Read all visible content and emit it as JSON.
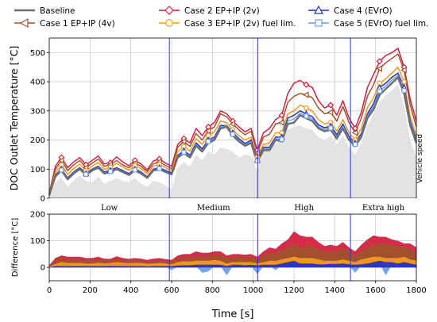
{
  "legend": [
    {
      "name": "Baseline",
      "color": "#6e6e6e",
      "marker": "none"
    },
    {
      "name": "Case 1  EP+IP (4v)",
      "color": "#a0522d",
      "marker": "tri-left"
    },
    {
      "name": "Case 2 EP+IP (2v)",
      "color": "#d62040",
      "marker": "diamond"
    },
    {
      "name": "Case 3 EP+IP (2v) fuel lim.",
      "color": "#f39a1c",
      "marker": "circle"
    },
    {
      "name": "Case 4 (EVrO)",
      "color": "#2431c8",
      "marker": "tri-up"
    },
    {
      "name": "Case 5 (EVrO) fuel lim.",
      "color": "#6f9ee6",
      "marker": "square"
    }
  ],
  "phases": [
    "Low",
    "Medium",
    "High",
    "Extra high"
  ],
  "vehicle_speed_label": "Vehicle speed",
  "chart_data": [
    {
      "type": "line",
      "ylabel": "DOC Outlet Temperature [°C]",
      "xlim": [
        0,
        1800
      ],
      "ylim": [
        0,
        550
      ],
      "yticks": [
        0,
        100,
        200,
        300,
        400,
        500
      ],
      "xticks": [
        0,
        200,
        400,
        600,
        800,
        1000,
        1200,
        1400,
        1600,
        1800
      ],
      "phase_boundaries": [
        589,
        1022,
        1477
      ],
      "grid": true,
      "x": [
        0,
        30,
        60,
        90,
        120,
        150,
        180,
        210,
        240,
        270,
        300,
        330,
        360,
        390,
        420,
        450,
        480,
        510,
        540,
        570,
        600,
        630,
        660,
        690,
        720,
        750,
        780,
        810,
        840,
        870,
        900,
        930,
        960,
        990,
        1020,
        1050,
        1080,
        1110,
        1140,
        1170,
        1200,
        1230,
        1260,
        1290,
        1320,
        1350,
        1380,
        1410,
        1440,
        1470,
        1500,
        1530,
        1560,
        1590,
        1620,
        1650,
        1680,
        1710,
        1740,
        1770,
        1800
      ],
      "series": [
        {
          "name": "Baseline",
          "values": [
            10,
            75,
            95,
            65,
            85,
            100,
            80,
            95,
            105,
            85,
            90,
            100,
            90,
            80,
            95,
            85,
            70,
            95,
            100,
            90,
            82,
            140,
            155,
            140,
            180,
            160,
            190,
            200,
            240,
            245,
            215,
            195,
            180,
            190,
            125,
            165,
            165,
            200,
            195,
            255,
            260,
            285,
            275,
            265,
            240,
            230,
            235,
            205,
            240,
            200,
            180,
            210,
            275,
            305,
            355,
            375,
            395,
            415,
            360,
            250,
            190
          ]
        },
        {
          "name": "Case 1  EP+IP (4v)",
          "values": [
            15,
            100,
            130,
            95,
            115,
            130,
            105,
            120,
            135,
            110,
            115,
            130,
            115,
            105,
            120,
            110,
            92,
            118,
            125,
            113,
            102,
            175,
            195,
            178,
            222,
            200,
            232,
            245,
            290,
            280,
            255,
            235,
            218,
            230,
            155,
            210,
            220,
            255,
            260,
            330,
            350,
            360,
            355,
            345,
            310,
            290,
            295,
            265,
            315,
            260,
            225,
            275,
            350,
            390,
            445,
            465,
            480,
            495,
            440,
            320,
            245
          ]
        },
        {
          "name": "Case 2 EP+IP (2v)",
          "values": [
            18,
            110,
            140,
            105,
            125,
            140,
            115,
            130,
            145,
            118,
            122,
            142,
            125,
            112,
            130,
            118,
            98,
            128,
            135,
            121,
            110,
            185,
            205,
            190,
            240,
            215,
            245,
            260,
            300,
            290,
            265,
            245,
            228,
            240,
            165,
            225,
            240,
            270,
            285,
            360,
            395,
            405,
            390,
            380,
            335,
            310,
            320,
            285,
            335,
            275,
            240,
            295,
            380,
            425,
            470,
            490,
            500,
            515,
            450,
            340,
            265
          ]
        },
        {
          "name": "Case 3 EP+IP (2v) fuel lim.",
          "values": [
            13,
            88,
            115,
            82,
            102,
            117,
            95,
            110,
            123,
            100,
            107,
            120,
            108,
            96,
            112,
            102,
            84,
            110,
            117,
            105,
            94,
            160,
            178,
            162,
            205,
            185,
            215,
            228,
            265,
            260,
            235,
            215,
            200,
            210,
            140,
            185,
            190,
            225,
            225,
            290,
            300,
            320,
            310,
            300,
            270,
            255,
            260,
            230,
            270,
            225,
            200,
            240,
            310,
            345,
            395,
            410,
            430,
            450,
            400,
            280,
            215
          ]
        },
        {
          "name": "Case 4 (EVrO)",
          "values": [
            11,
            80,
            100,
            70,
            90,
            105,
            85,
            100,
            110,
            90,
            96,
            105,
            95,
            85,
            100,
            90,
            74,
            100,
            105,
            95,
            87,
            147,
            163,
            148,
            190,
            170,
            200,
            210,
            250,
            250,
            225,
            205,
            188,
            200,
            132,
            175,
            175,
            210,
            210,
            275,
            285,
            300,
            290,
            280,
            252,
            242,
            248,
            218,
            255,
            212,
            190,
            222,
            290,
            325,
            380,
            395,
            415,
            430,
            380,
            265,
            200
          ]
        },
        {
          "name": "Case 5 (EVrO) fuel lim.",
          "values": [
            10,
            77,
            97,
            67,
            87,
            102,
            82,
            97,
            107,
            87,
            92,
            102,
            92,
            82,
            97,
            87,
            72,
            97,
            102,
            92,
            84,
            143,
            158,
            144,
            184,
            164,
            195,
            205,
            245,
            248,
            220,
            200,
            184,
            195,
            128,
            170,
            170,
            205,
            202,
            265,
            272,
            292,
            282,
            272,
            246,
            236,
            241,
            211,
            248,
            206,
            185,
            216,
            282,
            315,
            368,
            385,
            405,
            422,
            370,
            258,
            195
          ]
        }
      ],
      "vehicle_speed_band": [
        0,
        55,
        70,
        40,
        62,
        78,
        60,
        55,
        75,
        50,
        60,
        70,
        60,
        55,
        70,
        50,
        40,
        60,
        55,
        45,
        30,
        105,
        125,
        110,
        150,
        130,
        160,
        150,
        175,
        170,
        160,
        140,
        150,
        145,
        90,
        180,
        195,
        185,
        210,
        235,
        245,
        250,
        240,
        235,
        210,
        200,
        215,
        185,
        215,
        175,
        150,
        190,
        250,
        290,
        330,
        355,
        370,
        390,
        320,
        200,
        140
      ]
    },
    {
      "type": "area",
      "ylabel": "Difference [°C]",
      "xlabel": "Time [s]",
      "xlim": [
        0,
        1800
      ],
      "ylim": [
        -50,
        200
      ],
      "yticks": [
        0,
        100,
        200
      ],
      "xticks": [
        0,
        200,
        400,
        600,
        800,
        1000,
        1200,
        1400,
        1600,
        1800
      ],
      "phase_boundaries": [
        589,
        1022,
        1477
      ],
      "grid": true,
      "x": [
        0,
        30,
        60,
        90,
        120,
        150,
        180,
        210,
        240,
        270,
        300,
        330,
        360,
        390,
        420,
        450,
        480,
        510,
        540,
        570,
        600,
        630,
        660,
        690,
        720,
        750,
        780,
        810,
        840,
        870,
        900,
        930,
        960,
        990,
        1020,
        1050,
        1080,
        1110,
        1140,
        1170,
        1200,
        1230,
        1260,
        1290,
        1320,
        1350,
        1380,
        1410,
        1440,
        1470,
        1500,
        1530,
        1560,
        1590,
        1620,
        1650,
        1680,
        1710,
        1740,
        1770,
        1800
      ],
      "series": [
        {
          "name": "Case 2 EP+IP (2v)",
          "values": [
            8,
            35,
            45,
            40,
            40,
            40,
            35,
            35,
            40,
            33,
            32,
            42,
            35,
            32,
            35,
            33,
            28,
            33,
            35,
            31,
            28,
            45,
            50,
            50,
            60,
            55,
            55,
            60,
            60,
            45,
            50,
            50,
            48,
            50,
            40,
            60,
            75,
            70,
            90,
            105,
            135,
            120,
            115,
            115,
            95,
            80,
            85,
            80,
            95,
            75,
            60,
            85,
            105,
            120,
            115,
            115,
            105,
            100,
            90,
            90,
            75
          ]
        },
        {
          "name": "Case 1  EP+IP (4v)",
          "values": [
            5,
            25,
            35,
            30,
            30,
            30,
            25,
            25,
            30,
            25,
            25,
            30,
            25,
            25,
            25,
            25,
            22,
            23,
            25,
            23,
            20,
            35,
            40,
            38,
            42,
            40,
            42,
            45,
            50,
            35,
            40,
            40,
            38,
            40,
            30,
            45,
            55,
            55,
            65,
            75,
            90,
            75,
            80,
            80,
            70,
            60,
            60,
            60,
            75,
            60,
            45,
            65,
            75,
            85,
            90,
            90,
            85,
            80,
            80,
            70,
            55
          ]
        },
        {
          "name": "Case 3 EP+IP (2v) fuel lim.",
          "values": [
            3,
            13,
            20,
            17,
            17,
            17,
            15,
            15,
            18,
            15,
            17,
            20,
            18,
            16,
            17,
            17,
            14,
            15,
            17,
            15,
            12,
            20,
            23,
            22,
            25,
            25,
            25,
            28,
            25,
            15,
            20,
            20,
            20,
            20,
            15,
            20,
            25,
            25,
            30,
            35,
            40,
            35,
            35,
            35,
            30,
            25,
            25,
            25,
            30,
            25,
            20,
            30,
            35,
            40,
            40,
            35,
            35,
            35,
            40,
            30,
            25
          ]
        },
        {
          "name": "Case 5 (EVrO) fuel lim.",
          "values": [
            0,
            2,
            2,
            2,
            2,
            2,
            2,
            2,
            2,
            2,
            2,
            2,
            2,
            2,
            2,
            2,
            2,
            2,
            2,
            2,
            -10,
            3,
            3,
            4,
            4,
            -20,
            -15,
            5,
            5,
            -30,
            5,
            5,
            4,
            5,
            -25,
            5,
            5,
            -10,
            7,
            10,
            12,
            7,
            7,
            7,
            6,
            6,
            6,
            6,
            8,
            6,
            -20,
            6,
            7,
            10,
            13,
            -30,
            10,
            7,
            10,
            8,
            5
          ]
        },
        {
          "name": "Case 4 (EVrO)",
          "values": [
            1,
            5,
            5,
            5,
            5,
            5,
            5,
            5,
            5,
            5,
            6,
            5,
            5,
            5,
            5,
            5,
            4,
            5,
            5,
            5,
            5,
            7,
            8,
            8,
            10,
            10,
            10,
            10,
            10,
            5,
            10,
            10,
            8,
            10,
            7,
            10,
            10,
            10,
            15,
            20,
            25,
            15,
            15,
            15,
            12,
            12,
            13,
            13,
            15,
            12,
            10,
            12,
            15,
            20,
            25,
            20,
            20,
            15,
            20,
            15,
            10
          ]
        }
      ]
    }
  ]
}
